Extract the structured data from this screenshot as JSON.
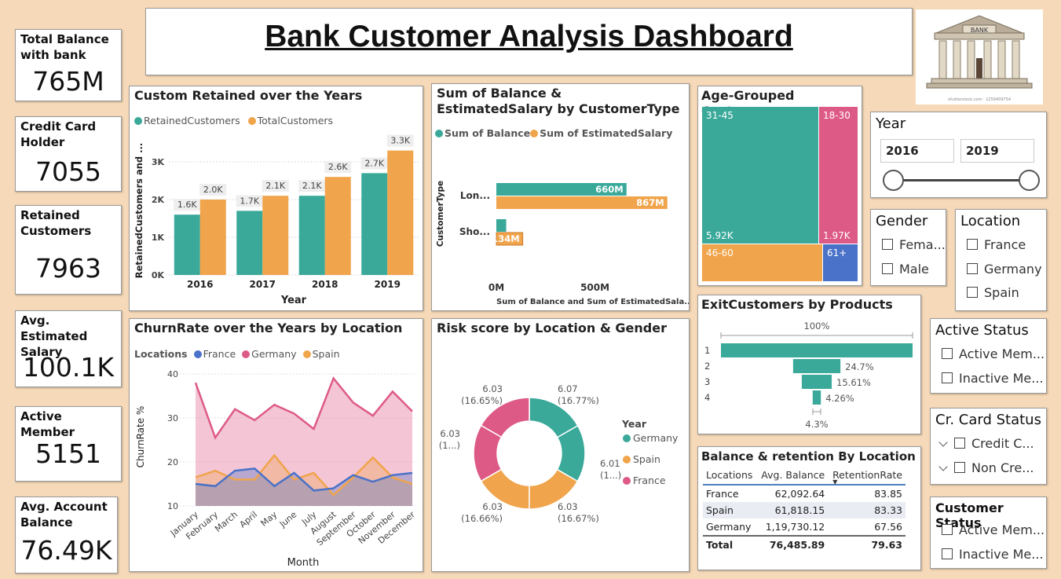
{
  "title": "Bank Customer Analysis Dashboard",
  "logo": {
    "sign": "BANK",
    "credit": "shutterstock.com · 1259409754"
  },
  "kpis": [
    {
      "label": "Total Balance with bank",
      "value": "765M"
    },
    {
      "label": "Credit Card Holder",
      "value": "7055"
    },
    {
      "label": "Retained Customers",
      "value": "7963"
    },
    {
      "label": "Avg. Estimated Salary",
      "value": "100.1K"
    },
    {
      "label": "Active Member",
      "value": "5151"
    },
    {
      "label": "Avg. Account Balance",
      "value": "76.49K"
    }
  ],
  "retained_chart": {
    "title": "Custom Retained over the Years",
    "chart_data": {
      "type": "bar",
      "categories": [
        "2016",
        "2017",
        "2018",
        "2019"
      ],
      "series": [
        {
          "name": "RetainedCustomers",
          "values": [
            1600,
            1700,
            2100,
            2700
          ],
          "labels": [
            "1.6K",
            "1.7K",
            "2.1K",
            "2.7K"
          ],
          "color": "#3aa99a"
        },
        {
          "name": "TotalCustomers",
          "values": [
            2000,
            2100,
            2600,
            3300
          ],
          "labels": [
            "2.0K",
            "2.1K",
            "2.6K",
            "3.3K"
          ],
          "color": "#f0a44b"
        }
      ],
      "xlabel": "Year",
      "ylabel": "RetainedCustomers and ...",
      "yticks": [
        "0K",
        "1K",
        "2K",
        "3K"
      ],
      "ylim": [
        0,
        3500
      ]
    }
  },
  "balance_salary_chart": {
    "title": "Sum of Balance & EstimatedSalary by CustomerType",
    "chart_data": {
      "type": "bar",
      "orientation": "horizontal",
      "categories": [
        "Lon...",
        "Sho..."
      ],
      "series": [
        {
          "name": "Sum of Balance",
          "values": [
            660,
            50
          ],
          "labels": [
            "660M",
            ""
          ],
          "color": "#3aa99a"
        },
        {
          "name": "Sum of EstimatedSalary",
          "values": [
            867,
            134
          ],
          "labels": [
            "867M",
            "134M"
          ],
          "color": "#f0a44b"
        }
      ],
      "ylabel": "CustomerType",
      "xlabel": "Sum of Balance and Sum of EstimatedSala...",
      "xticks": [
        "0M",
        "500M"
      ],
      "xlim": [
        0,
        880
      ]
    }
  },
  "age_chart": {
    "title": "Age-Grouped Customer",
    "chart_data": {
      "type": "treemap",
      "groups": [
        {
          "name": "31-45",
          "value": "5.92K",
          "color": "#3aa99a"
        },
        {
          "name": "18-30",
          "value": "1.97K",
          "color": "#de5a86"
        },
        {
          "name": "46-60",
          "value": "",
          "color": "#f0a44b"
        },
        {
          "name": "61+",
          "value": "",
          "color": "#4a72c8"
        }
      ]
    }
  },
  "year_slicer": {
    "title": "Year",
    "from": "2016",
    "to": "2019"
  },
  "gender_slicer": {
    "title": "Gender",
    "options": [
      "Fema...",
      "Male"
    ]
  },
  "location_slicer": {
    "title": "Location",
    "options": [
      "France",
      "Germany",
      "Spain"
    ]
  },
  "active_slicer": {
    "title": "Active Status",
    "options": [
      "Active Mem...",
      "Inactive Me..."
    ]
  },
  "card_slicer": {
    "title": "Cr. Card Status",
    "options": [
      "Credit C...",
      "Non Cre..."
    ]
  },
  "customer_slicer": {
    "title": "Customer Status",
    "options": [
      "Active Mem...",
      "Inactive Me..."
    ]
  },
  "churn_chart": {
    "title": "ChurnRate over the Years by Location",
    "legend_title": "Locations",
    "chart_data": {
      "type": "area",
      "x": [
        "January",
        "February",
        "March",
        "April",
        "May",
        "June",
        "July",
        "August",
        "September",
        "October",
        "November",
        "December"
      ],
      "series": [
        {
          "name": "France",
          "color": "#4a72c8",
          "values": [
            15,
            14.5,
            18,
            18.5,
            14.5,
            17.5,
            13.5,
            14,
            17,
            15.5,
            17,
            17.5
          ]
        },
        {
          "name": "Germany",
          "color": "#de5a86",
          "values": [
            38,
            25.5,
            32,
            29.5,
            33,
            31,
            27.5,
            39,
            33.5,
            30.5,
            36,
            31.5
          ]
        },
        {
          "name": "Spain",
          "color": "#f0a44b",
          "values": [
            16.5,
            18,
            16,
            16,
            21.5,
            16,
            17.5,
            12.5,
            16.5,
            21,
            16.5,
            15
          ]
        }
      ],
      "xlabel": "Month",
      "ylabel": "ChurnRate %",
      "yticks": [
        "10",
        "20",
        "30",
        "40"
      ],
      "ylim": [
        10,
        40
      ]
    }
  },
  "risk_chart": {
    "title": "Risk score by Location & Gender",
    "legend_title": "Year",
    "legend": [
      "Germany",
      "Spain",
      "France"
    ],
    "chart_data": {
      "type": "pie",
      "slices": [
        {
          "location": "Germany",
          "value": 6.07,
          "label": "6.07",
          "pct": "(16.77%)",
          "color": "#3aa99a"
        },
        {
          "location": "Germany",
          "value": 6.01,
          "label": "6.01",
          "pct": "(1...)",
          "color": "#3aa99a"
        },
        {
          "location": "Spain",
          "value": 6.03,
          "label": "6.03",
          "pct": "(16.67%)",
          "color": "#f0a44b"
        },
        {
          "location": "Spain",
          "value": 6.03,
          "label": "6.03",
          "pct": "(16.66%)",
          "color": "#f0a44b"
        },
        {
          "location": "France",
          "value": 6.03,
          "label": "6.03",
          "pct": "(1...)",
          "color": "#de5a86"
        },
        {
          "location": "France",
          "value": 6.03,
          "label": "6.03",
          "pct": "(16.65%)",
          "color": "#de5a86"
        }
      ]
    }
  },
  "exit_chart": {
    "title": "ExitCustomers by Products",
    "chart_data": {
      "type": "funnel",
      "categories": [
        "1",
        "2",
        "3",
        "4"
      ],
      "values": [
        100,
        24.7,
        15.61,
        4.26
      ],
      "labels": [
        "100%",
        "24.7%",
        "15.61%",
        "4.26%"
      ],
      "footer": "4.3%"
    }
  },
  "balance_table": {
    "title": "Balance & retention By Location",
    "columns": [
      "Locations",
      "Avg. Balance",
      "RetentionRate"
    ],
    "rows": [
      [
        "France",
        "62,092.64",
        "83.85"
      ],
      [
        "Spain",
        "61,818.15",
        "83.33"
      ],
      [
        "Germany",
        "1,19,730.12",
        "67.56"
      ]
    ],
    "total": [
      "Total",
      "76,485.89",
      "79.63"
    ]
  }
}
